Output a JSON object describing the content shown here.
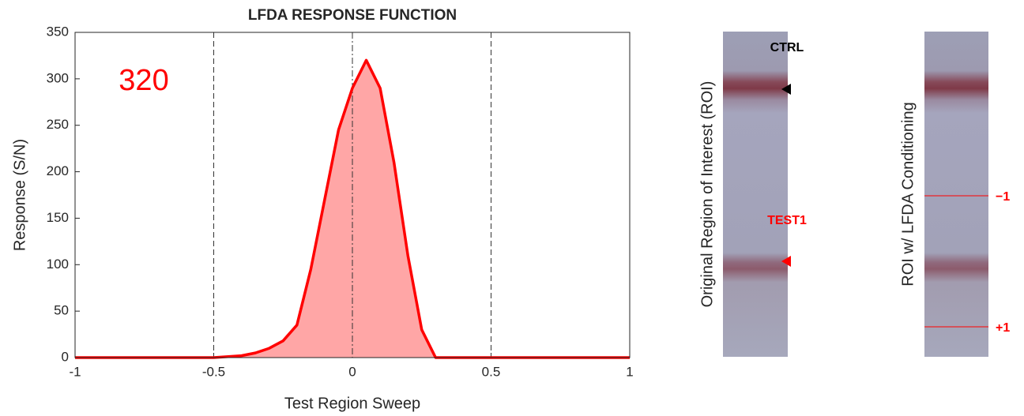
{
  "chart_data": {
    "type": "area",
    "title": "LFDA RESPONSE FUNCTION",
    "x_label": "Test Region Sweep",
    "y_label": "Response (S/N)",
    "annotation": "320",
    "x": [
      -1,
      -0.5,
      -0.4,
      -0.35,
      -0.3,
      -0.25,
      -0.2,
      -0.15,
      -0.1,
      -0.05,
      0,
      0.05,
      0.1,
      0.15,
      0.2,
      0.25,
      0.3,
      0.35,
      0.5,
      1
    ],
    "values": [
      0,
      0,
      2,
      5,
      10,
      18,
      35,
      95,
      170,
      245,
      290,
      320,
      290,
      210,
      110,
      30,
      0,
      0,
      0,
      0
    ],
    "color": "#ff0000",
    "fill": "#ffa6a6",
    "xlim": [
      -1,
      1
    ],
    "ylim": [
      0,
      350
    ],
    "xticks": [
      -1,
      -0.5,
      0,
      0.5,
      1
    ],
    "yticks": [
      0,
      50,
      100,
      150,
      200,
      250,
      300,
      350
    ],
    "reference_lines": [
      -0.5,
      0,
      0.5
    ]
  },
  "roi_panels": {
    "original": {
      "label": "Original Region of Interest (ROI)",
      "control": "CTRL",
      "test": "TEST1"
    },
    "conditioned": {
      "label": "ROI w/ LFDA Conditioning",
      "lower": "−1",
      "upper": "+1"
    }
  }
}
